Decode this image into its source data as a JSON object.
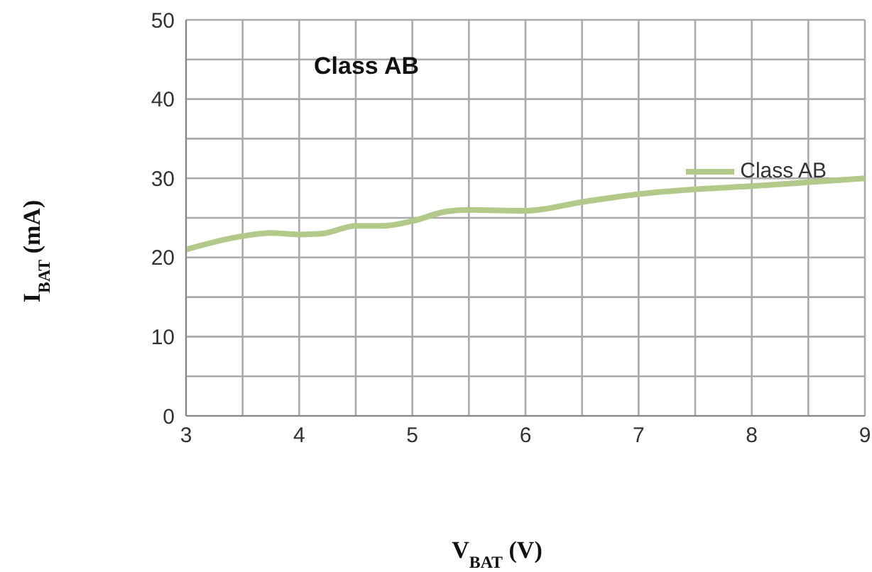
{
  "chart_data": {
    "type": "line",
    "title": "Class AB",
    "xlabel": "V$_{BAT}$ (V)",
    "ylabel": "I$_{BAT}$ (mA)",
    "x": [
      3,
      3.5,
      3.75,
      4,
      4.2,
      4.5,
      4.75,
      5,
      5.3,
      5.5,
      6,
      6.5,
      7,
      7.5,
      8,
      8.5,
      9
    ],
    "series": [
      {
        "name": "Class AB",
        "color": "#b3c98a",
        "values": [
          21,
          22.7,
          23.1,
          22.9,
          23,
          24,
          24,
          24.6,
          25.8,
          26,
          25.9,
          27,
          28,
          28.6,
          29,
          29.5,
          30
        ]
      }
    ],
    "xlim": [
      3,
      9
    ],
    "xticks": [
      3,
      {
        "value": 3.5,
        "label": null
      },
      4,
      {
        "value": 4.5,
        "label": null
      },
      5,
      {
        "value": 5.5,
        "label": null
      },
      6,
      {
        "value": 6.5,
        "label": null
      },
      7,
      {
        "value": 7.5,
        "label": null
      },
      8,
      {
        "value": 8.5,
        "label": null
      },
      9
    ],
    "ylim": [
      0,
      50
    ],
    "yticks": [
      0,
      {
        "value": 5,
        "label": null
      },
      10,
      {
        "value": 15,
        "label": null
      },
      20,
      {
        "value": 25,
        "label": null
      },
      30,
      {
        "value": 35,
        "label": null
      },
      40,
      {
        "value": 45,
        "label": null
      },
      50
    ],
    "grid": true,
    "legend": "top right",
    "marker": "none",
    "line_style": "solid"
  }
}
